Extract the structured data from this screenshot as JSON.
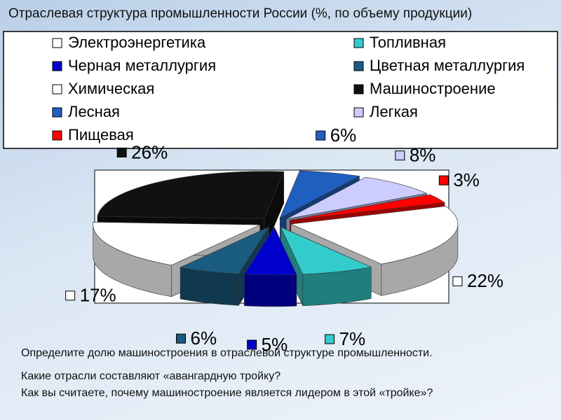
{
  "chart_data": {
    "type": "pie",
    "title": "Отраслевая структура промышленности России (%, по объему продукции)",
    "categories": [
      "Электроэнергетика",
      "Топливная",
      "Черная металлургия",
      "Цветная металлургия",
      "Химическая",
      "Машиностроение",
      "Лесная",
      "Легкая",
      "Пищевая"
    ],
    "values": [
      22,
      7,
      5,
      6,
      17,
      26,
      6,
      8,
      3
    ],
    "value_labels": [
      "22%",
      "7%",
      "5%",
      "6%",
      "17%",
      "26%",
      "6%",
      "8%",
      "3%"
    ],
    "colors": [
      "#ffffff",
      "#33cccc",
      "#0000cc",
      "#1a5c80",
      "#ffffff",
      "#111111",
      "#1f5fbf",
      "#ccccff",
      "#ff0000"
    ]
  },
  "slide": {
    "question": "Определите долю машиностроения в отраслевой структуре промышленности.",
    "lines": [
      "Какие отрасли составляют «авангардную тройку?",
      "Как вы считаете, почему машиностроение является лидером в этой «тройке»?"
    ]
  }
}
